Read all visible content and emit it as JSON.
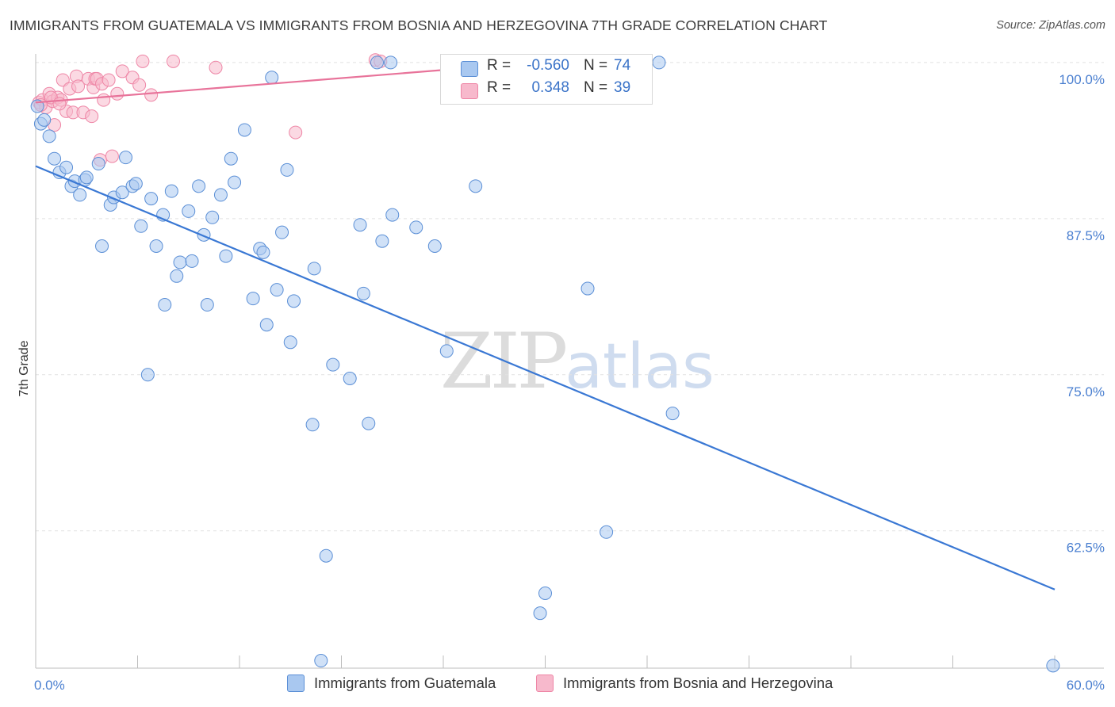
{
  "header": {
    "title": "IMMIGRANTS FROM GUATEMALA VS IMMIGRANTS FROM BOSNIA AND HERZEGOVINA 7TH GRADE CORRELATION CHART",
    "source": "Source: ZipAtlas.com"
  },
  "watermark": {
    "zip": "ZIP",
    "atlas": "atlas"
  },
  "legend": {
    "r_label": "R =",
    "n_label": "N =",
    "rows": [
      {
        "r": "-0.560",
        "n": "74"
      },
      {
        "r": "0.348",
        "n": "39"
      }
    ]
  },
  "colors": {
    "blue_fill": "#a9c8f0",
    "blue_stroke": "#5b8fd6",
    "blue_line": "#3a78d4",
    "pink_fill": "#f7b9cc",
    "pink_stroke": "#ee86a6",
    "pink_line": "#e8739a",
    "tick_label": "#4a7fd0",
    "grid": "#e2e2e2"
  },
  "chart_data": {
    "type": "scatter",
    "title": "IMMIGRANTS FROM GUATEMALA VS IMMIGRANTS FROM BOSNIA AND HERZEGOVINA 7TH GRADE CORRELATION CHART",
    "xlabel": "",
    "ylabel": "7th Grade",
    "xlim": [
      0,
      60
    ],
    "ylim": [
      51.5,
      101.2
    ],
    "x_tick_labels": [
      "0.0%",
      "60.0%"
    ],
    "y_ticks": [
      62.5,
      75.0,
      87.5,
      100.0
    ],
    "y_tick_labels": [
      "62.5%",
      "75.0%",
      "87.5%",
      "100.0%"
    ],
    "grid": true,
    "legend_position": "bottom",
    "series": [
      {
        "name": "Immigrants from Guatemala",
        "color": "#a9c8f0",
        "trend": {
          "x": [
            0,
            60
          ],
          "y": [
            91.7,
            57.8
          ]
        },
        "points": [
          [
            0.1,
            96.5
          ],
          [
            0.3,
            95.1
          ],
          [
            0.8,
            94.1
          ],
          [
            1.1,
            92.3
          ],
          [
            1.4,
            91.2
          ],
          [
            1.8,
            91.6
          ],
          [
            2.1,
            90.1
          ],
          [
            2.3,
            90.5
          ],
          [
            2.6,
            89.4
          ],
          [
            2.9,
            90.6
          ],
          [
            3.0,
            90.8
          ],
          [
            3.7,
            91.9
          ],
          [
            3.9,
            85.3
          ],
          [
            4.4,
            88.6
          ],
          [
            4.6,
            89.2
          ],
          [
            5.1,
            89.6
          ],
          [
            5.3,
            92.4
          ],
          [
            5.7,
            90.1
          ],
          [
            5.9,
            90.3
          ],
          [
            6.2,
            86.9
          ],
          [
            6.6,
            75.0
          ],
          [
            6.8,
            89.1
          ],
          [
            7.1,
            85.3
          ],
          [
            7.5,
            87.8
          ],
          [
            7.6,
            80.6
          ],
          [
            8.0,
            89.7
          ],
          [
            8.3,
            82.9
          ],
          [
            8.5,
            84.0
          ],
          [
            9.0,
            88.1
          ],
          [
            9.2,
            84.1
          ],
          [
            9.6,
            90.1
          ],
          [
            9.9,
            86.2
          ],
          [
            10.1,
            80.6
          ],
          [
            10.4,
            87.6
          ],
          [
            10.9,
            89.4
          ],
          [
            11.2,
            84.5
          ],
          [
            11.5,
            92.3
          ],
          [
            11.7,
            90.4
          ],
          [
            12.3,
            94.6
          ],
          [
            12.8,
            81.1
          ],
          [
            13.2,
            85.1
          ],
          [
            13.4,
            84.8
          ],
          [
            13.6,
            79.0
          ],
          [
            13.9,
            98.8
          ],
          [
            14.2,
            81.8
          ],
          [
            14.5,
            86.4
          ],
          [
            14.8,
            91.4
          ],
          [
            15.0,
            77.6
          ],
          [
            15.2,
            80.9
          ],
          [
            16.3,
            71.0
          ],
          [
            16.4,
            83.5
          ],
          [
            16.8,
            52.1
          ],
          [
            17.1,
            60.5
          ],
          [
            17.5,
            75.8
          ],
          [
            18.5,
            74.7
          ],
          [
            19.1,
            87.0
          ],
          [
            19.3,
            81.5
          ],
          [
            19.6,
            71.1
          ],
          [
            20.1,
            100.0
          ],
          [
            20.4,
            85.7
          ],
          [
            20.9,
            100.0
          ],
          [
            21.0,
            87.8
          ],
          [
            22.4,
            86.8
          ],
          [
            23.5,
            85.3
          ],
          [
            24.2,
            76.9
          ],
          [
            25.9,
            90.1
          ],
          [
            29.7,
            55.9
          ],
          [
            30.0,
            57.5
          ],
          [
            32.5,
            81.9
          ],
          [
            33.6,
            62.4
          ],
          [
            36.7,
            100.0
          ],
          [
            37.5,
            71.9
          ],
          [
            59.9,
            51.7
          ],
          [
            0.5,
            95.4
          ]
        ]
      },
      {
        "name": "Immigrants from Bosnia and Herzegovina",
        "color": "#f7b9cc",
        "trend": {
          "x": [
            0,
            29.5
          ],
          "y": [
            96.8,
            100.0
          ]
        },
        "points": [
          [
            0.2,
            96.8
          ],
          [
            0.4,
            97.0
          ],
          [
            0.6,
            96.4
          ],
          [
            0.8,
            97.5
          ],
          [
            1.0,
            96.9
          ],
          [
            1.1,
            95.0
          ],
          [
            1.3,
            97.2
          ],
          [
            1.5,
            97.0
          ],
          [
            1.6,
            98.6
          ],
          [
            1.8,
            96.1
          ],
          [
            2.0,
            97.9
          ],
          [
            2.2,
            96.0
          ],
          [
            2.4,
            98.9
          ],
          [
            2.5,
            98.1
          ],
          [
            2.8,
            96.0
          ],
          [
            3.1,
            98.7
          ],
          [
            3.3,
            95.7
          ],
          [
            3.4,
            98.0
          ],
          [
            3.5,
            98.7
          ],
          [
            3.6,
            98.7
          ],
          [
            3.8,
            92.2
          ],
          [
            3.9,
            98.3
          ],
          [
            4.0,
            97.0
          ],
          [
            4.3,
            98.6
          ],
          [
            4.5,
            92.5
          ],
          [
            4.8,
            97.5
          ],
          [
            5.1,
            99.3
          ],
          [
            5.7,
            98.8
          ],
          [
            6.1,
            98.2
          ],
          [
            6.3,
            100.1
          ],
          [
            6.8,
            97.4
          ],
          [
            8.1,
            100.1
          ],
          [
            10.6,
            99.6
          ],
          [
            15.3,
            94.4
          ],
          [
            20.0,
            100.2
          ],
          [
            20.3,
            100.1
          ],
          [
            0.3,
            96.6
          ],
          [
            0.9,
            97.2
          ],
          [
            1.4,
            96.7
          ]
        ]
      }
    ]
  },
  "bottom_legend": [
    "Immigrants from Guatemala",
    "Immigrants from Bosnia and Herzegovina"
  ]
}
